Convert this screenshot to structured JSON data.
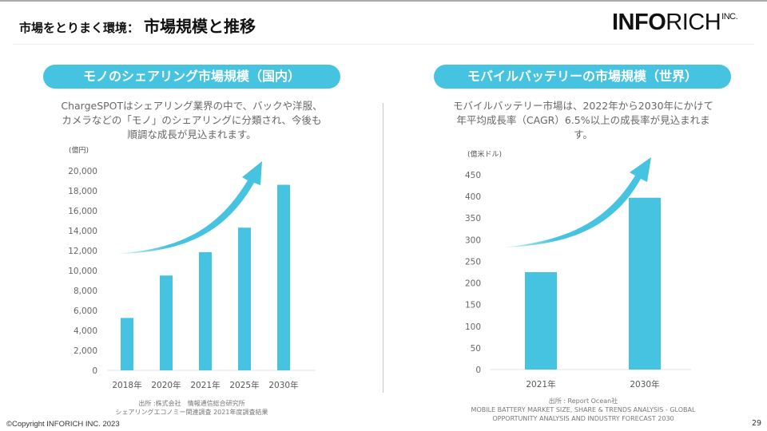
{
  "header": {
    "section": "市場をとりまく環境：",
    "title": "市場規模と推移"
  },
  "logo": {
    "bold": "INFO",
    "thin": "RICH",
    "inc": "INC."
  },
  "colors": {
    "accent": "#45c3e0",
    "bar": "#45c3e0",
    "text_muted": "#666666"
  },
  "left_panel": {
    "pill": "モノのシェアリング市場規模（国内）",
    "description": [
      "ChargeSPOTはシェアリング業界の中で、バックや洋服、",
      "カメラなどの「モノ」のシェアリングに分類され、今後も",
      "順調な成長が見込まれます。"
    ],
    "source": [
      "出所 :株式会社　情報通信総合研究所",
      "シェアリングエコノミー関連調査 2021年度調査結果"
    ]
  },
  "right_panel": {
    "pill": "モバイルバッテリーの市場規模（世界）",
    "description": [
      "モバイルバッテリー市場は、2022年から2030年にかけて",
      "年平均成長率（CAGR）6.5%以上の成長率が見込まれま",
      "す。"
    ],
    "source": [
      "出所 : Report Ocean社",
      "MOBILE BATTERY MARKET SIZE, SHARE & TRENDS ANALYSIS - GLOBAL",
      "OPPORTUNITY ANALYSIS AND INDUSTRY FORECAST 2030"
    ]
  },
  "chart_data": [
    {
      "type": "bar",
      "title": "モノのシェアリング市場規模（国内）",
      "unit_label": "(億円)",
      "categories": [
        "2018年",
        "2020年",
        "2021年",
        "2025年",
        "2030年"
      ],
      "values": [
        5250,
        9500,
        11850,
        14300,
        18600
      ],
      "yticks": [
        "0",
        "2,000",
        "4,000",
        "6,000",
        "8,000",
        "10,000",
        "12,000",
        "14,000",
        "16,000",
        "18,000",
        "20,000"
      ],
      "ylim": [
        0,
        20000
      ],
      "ystep": 2000,
      "grid": false,
      "annotation": "upward-trend-arrow"
    },
    {
      "type": "bar",
      "title": "モバイルバッテリーの市場規模（世界）",
      "unit_label": "(億米ドル)",
      "categories": [
        "2021年",
        "2030年"
      ],
      "values": [
        225,
        397
      ],
      "yticks": [
        "0",
        "50",
        "100",
        "150",
        "200",
        "250",
        "300",
        "350",
        "400",
        "450"
      ],
      "ylim": [
        0,
        450
      ],
      "ystep": 50,
      "grid": false,
      "annotation": "upward-trend-arrow"
    }
  ],
  "footer": {
    "copyright": "©Copyright INFORICH INC. 2023",
    "page": "29"
  }
}
